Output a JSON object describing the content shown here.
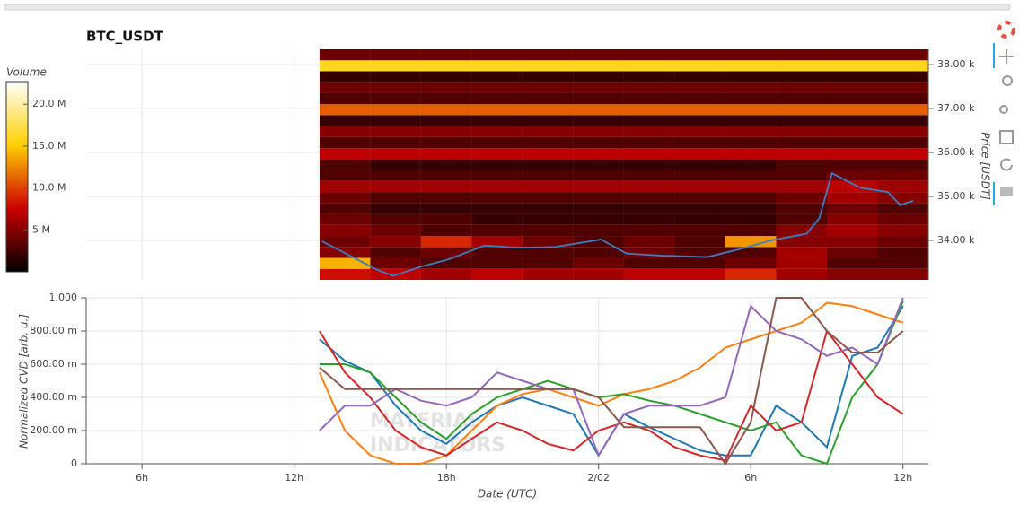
{
  "chart_data": [
    {
      "type": "heatmap",
      "title": "BTC_USDT",
      "ylabel": "Price [USDT]",
      "xlim": [
        3.8,
        37
      ],
      "ylim": [
        33100,
        38350
      ],
      "grid": true,
      "yticks": [
        {
          "value": 34000,
          "label": "34.00 k"
        },
        {
          "value": 35000,
          "label": "35.00 k"
        },
        {
          "value": 36000,
          "label": "36.00 k"
        },
        {
          "value": 37000,
          "label": "37.00 k"
        },
        {
          "value": 38000,
          "label": "38.00 k"
        }
      ],
      "heatmap": {
        "clabel": "Volume",
        "clim": [
          0,
          22.7
        ],
        "colormap": [
          "#000000",
          "#cc0000",
          "#ffd000",
          "#ffffff"
        ],
        "cticks": [
          {
            "value": 5,
            "label": "5 M"
          },
          {
            "value": 10,
            "label": "10.0 M"
          },
          {
            "value": 15,
            "label": "15.0 M"
          },
          {
            "value": 20,
            "label": "20.0 M"
          }
        ],
        "x_edges": [
          13,
          15,
          17,
          19,
          21,
          23,
          25,
          27,
          29,
          31,
          33,
          35,
          37
        ],
        "y_edges": [
          33100,
          33350,
          33600,
          33850,
          34100,
          34350,
          34600,
          34850,
          35100,
          35350,
          35600,
          35850,
          36100,
          36350,
          36600,
          36850,
          37100,
          37350,
          37600,
          37850,
          38100,
          38350
        ],
        "values": [
          [
            8,
            7,
            6,
            7,
            6,
            6,
            7,
            7,
            9,
            6,
            5,
            5
          ],
          [
            14,
            4,
            3,
            3,
            3,
            4,
            3,
            3,
            4,
            6,
            3,
            3
          ],
          [
            5,
            3,
            4,
            3,
            3,
            3,
            4,
            3,
            3,
            6,
            4,
            3
          ],
          [
            4,
            5,
            9,
            6,
            4,
            3,
            4,
            3,
            13,
            5,
            5,
            4
          ],
          [
            5,
            4,
            3,
            3,
            3,
            3,
            3,
            3,
            3,
            5,
            6,
            5
          ],
          [
            4,
            3,
            3,
            2,
            2,
            2,
            2,
            2,
            2,
            3,
            5,
            4
          ],
          [
            3,
            2,
            2,
            2,
            2,
            2,
            2,
            2,
            2,
            3,
            4,
            3
          ],
          [
            4,
            3,
            3,
            3,
            3,
            3,
            3,
            3,
            3,
            4,
            6,
            5
          ],
          [
            6,
            6,
            6,
            6,
            6,
            6,
            6,
            6,
            6,
            6,
            7,
            6
          ],
          [
            3,
            3,
            3,
            3,
            3,
            3,
            3,
            3,
            3,
            3,
            4,
            4
          ],
          [
            3,
            2,
            2,
            2,
            2,
            2,
            2,
            2,
            2,
            3,
            3,
            3
          ],
          [
            7,
            7,
            7,
            7,
            7,
            7,
            7,
            7,
            7,
            7,
            7,
            7
          ],
          [
            3,
            3,
            3,
            3,
            3,
            3,
            3,
            3,
            3,
            3,
            3,
            3
          ],
          [
            5,
            5,
            5,
            5,
            5,
            5,
            5,
            5,
            5,
            5,
            5,
            5
          ],
          [
            2,
            2,
            2,
            2,
            2,
            2,
            2,
            2,
            2,
            2,
            2,
            2
          ],
          [
            11,
            11,
            11,
            11,
            11,
            11,
            11,
            11,
            11,
            11,
            11,
            11
          ],
          [
            3,
            3,
            3,
            3,
            3,
            3,
            3,
            3,
            3,
            3,
            3,
            3
          ],
          [
            4,
            4,
            4,
            4,
            4,
            4,
            4,
            4,
            4,
            4,
            4,
            4
          ],
          [
            2,
            2,
            2,
            2,
            2,
            2,
            2,
            2,
            2,
            2,
            2,
            2
          ],
          [
            16,
            16,
            16,
            16,
            16,
            16,
            16,
            16,
            16,
            16,
            16,
            16
          ],
          [
            4,
            4,
            4,
            4,
            4,
            4,
            4,
            4,
            4,
            4,
            4,
            4
          ]
        ]
      },
      "price": {
        "color": "#3a7fc2",
        "x": [
          13.1,
          14.2,
          15.2,
          15.9,
          17.0,
          18.1,
          19.5,
          20.9,
          22.3,
          24.1,
          25.1,
          26.5,
          28.3,
          29.7,
          30.8,
          32.2,
          32.7,
          33.2,
          34.3,
          35.4,
          35.9,
          36.4
        ],
        "values": [
          33980,
          33650,
          33350,
          33190,
          33400,
          33570,
          33880,
          33830,
          33850,
          34020,
          33700,
          33650,
          33620,
          33820,
          34000,
          34150,
          34500,
          35530,
          35200,
          35100,
          34800,
          34900
        ]
      }
    },
    {
      "type": "line",
      "ylabel": "Normalized CVD [arb. u.]",
      "xlabel": "Date (UTC)",
      "watermark": [
        "MATERIAL",
        "INDICATORS"
      ],
      "xlim": [
        3.8,
        37
      ],
      "ylim": [
        0,
        1
      ],
      "grid": true,
      "xticks": [
        {
          "value": 6,
          "label": "6h"
        },
        {
          "value": 12,
          "label": "12h"
        },
        {
          "value": 18,
          "label": "18h"
        },
        {
          "value": 24,
          "label": "2/02"
        },
        {
          "value": 30,
          "label": "6h"
        },
        {
          "value": 36,
          "label": "12h"
        }
      ],
      "yticks": [
        0,
        {
          "value": 0.2,
          "label": "200.00 m"
        },
        {
          "value": 0.4,
          "label": "400.00 m"
        },
        {
          "value": 0.6,
          "label": "600.00 m"
        },
        {
          "value": 0.8,
          "label": "800.00 m"
        },
        {
          "value": 1,
          "label": "1.000"
        }
      ],
      "x": [
        13,
        14,
        15,
        16,
        17,
        18,
        19,
        20,
        21,
        22,
        23,
        24,
        25,
        26,
        27,
        28,
        29,
        30,
        31,
        32,
        33,
        34,
        35,
        36
      ],
      "series": [
        {
          "color": "#1f77b4",
          "values": [
            0.75,
            0.62,
            0.55,
            0.35,
            0.2,
            0.12,
            0.25,
            0.35,
            0.4,
            0.35,
            0.3,
            0.05,
            0.3,
            0.22,
            0.15,
            0.08,
            0.05,
            0.05,
            0.35,
            0.25,
            0.1,
            0.65,
            0.7,
            0.95
          ]
        },
        {
          "color": "#ff7f0e",
          "values": [
            0.55,
            0.2,
            0.05,
            0,
            0,
            0.05,
            0.2,
            0.35,
            0.42,
            0.45,
            0.4,
            0.35,
            0.42,
            0.45,
            0.5,
            0.58,
            0.7,
            0.75,
            0.8,
            0.85,
            0.97,
            0.95,
            0.9,
            0.85
          ]
        },
        {
          "color": "#2ca02c",
          "values": [
            0.6,
            0.6,
            0.55,
            0.4,
            0.25,
            0.15,
            0.3,
            0.4,
            0.45,
            0.5,
            0.45,
            0.4,
            0.42,
            0.38,
            0.35,
            0.3,
            0.25,
            0.2,
            0.25,
            0.05,
            0,
            0.4,
            0.6,
            0.98
          ]
        },
        {
          "color": "#d62728",
          "values": [
            0.8,
            0.55,
            0.4,
            0.2,
            0.1,
            0.05,
            0.15,
            0.25,
            0.2,
            0.12,
            0.08,
            0.2,
            0.25,
            0.2,
            0.1,
            0.05,
            0.02,
            0.35,
            0.2,
            0.25,
            0.8,
            0.6,
            0.4,
            0.3
          ]
        },
        {
          "color": "#9467bd",
          "values": [
            0.2,
            0.35,
            0.35,
            0.45,
            0.38,
            0.35,
            0.4,
            0.55,
            0.5,
            0.45,
            0.45,
            0.05,
            0.3,
            0.35,
            0.35,
            0.35,
            0.4,
            0.95,
            0.8,
            0.75,
            0.65,
            0.7,
            0.6,
            1
          ]
        },
        {
          "color": "#8c564b",
          "values": [
            0.58,
            0.45,
            0.45,
            0.45,
            0.45,
            0.45,
            0.45,
            0.45,
            0.45,
            0.45,
            0.45,
            0.4,
            0.22,
            0.22,
            0.22,
            0.22,
            0,
            0.25,
            1,
            1,
            0.8,
            0.67,
            0.67,
            0.8
          ]
        }
      ]
    }
  ]
}
